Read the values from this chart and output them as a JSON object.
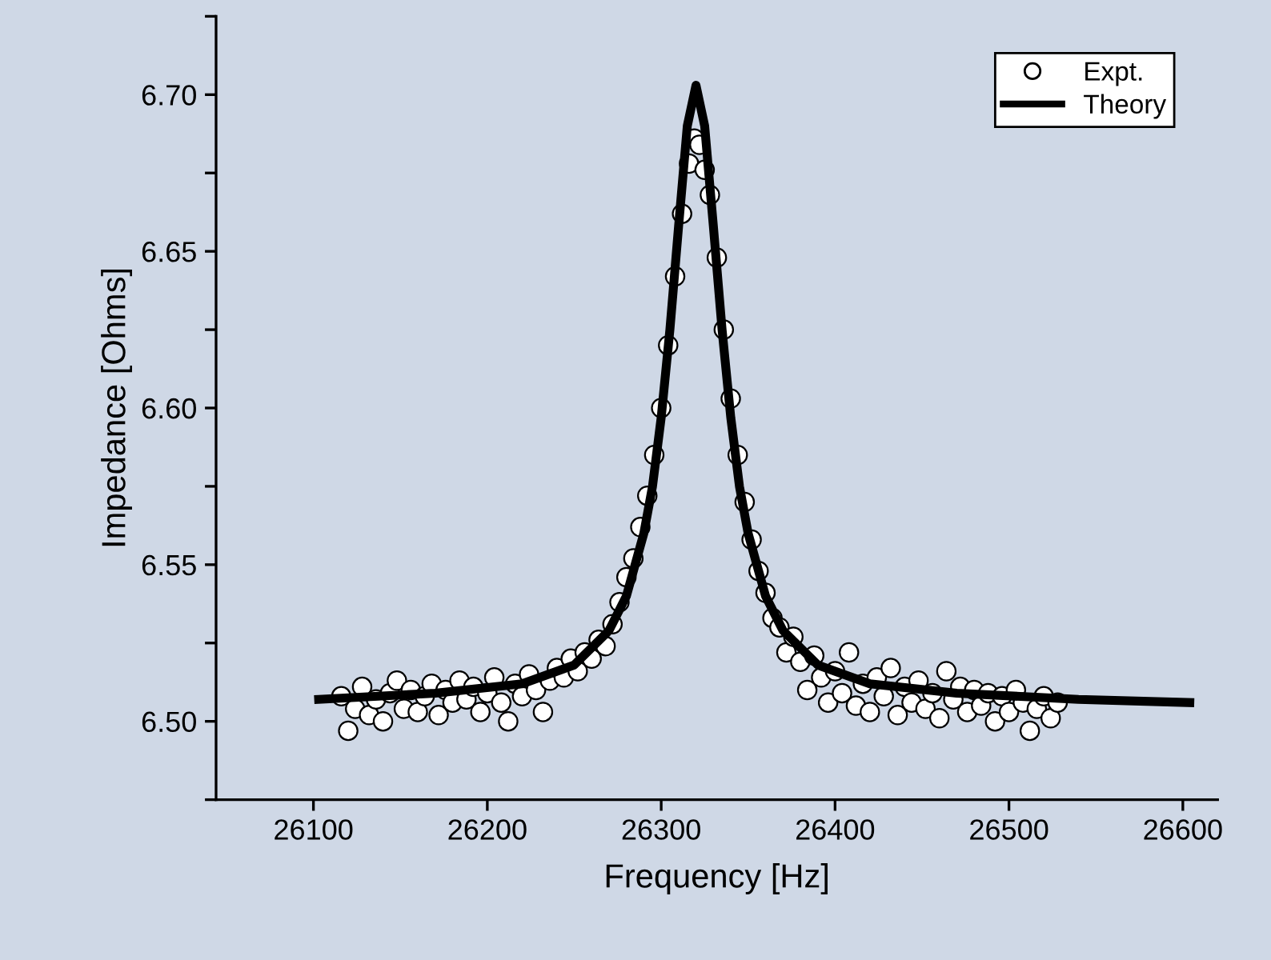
{
  "chart_data": {
    "type": "scatter",
    "xlabel": "Frequency [Hz]",
    "ylabel": "Impedance [Ohms]",
    "xlim": [
      26044,
      26620
    ],
    "ylim": [
      6.475,
      6.725
    ],
    "xticks": [
      26100,
      26200,
      26300,
      26400,
      26500,
      26600
    ],
    "yticks": [
      {
        "value": 6.475,
        "label": null
      },
      {
        "value": 6.5,
        "label": "6.50"
      },
      {
        "value": 6.525,
        "label": null
      },
      {
        "value": 6.55,
        "label": "6.55"
      },
      {
        "value": 6.575,
        "label": null
      },
      {
        "value": 6.6,
        "label": "6.60"
      },
      {
        "value": 6.625,
        "label": null
      },
      {
        "value": 6.65,
        "label": "6.65"
      },
      {
        "value": 6.675,
        "label": null
      },
      {
        "value": 6.7,
        "label": "6.70"
      },
      {
        "value": 6.725,
        "label": null
      }
    ],
    "grid": false,
    "legend": "top right",
    "series": [
      {
        "name": "Expt.",
        "marker": "circle",
        "color": "#ffffff",
        "x": [
          26116,
          26120,
          26124,
          26128,
          26132,
          26136,
          26140,
          26144,
          26148,
          26152,
          26156,
          26160,
          26164,
          26168,
          26172,
          26176,
          26180,
          26184,
          26188,
          26192,
          26196,
          26200,
          26204,
          26208,
          26212,
          26216,
          26220,
          26224,
          26228,
          26232,
          26236,
          26240,
          26244,
          26248,
          26252,
          26256,
          26260,
          26264,
          26268,
          26272,
          26276,
          26280,
          26284,
          26288,
          26292,
          26296,
          26300,
          26304,
          26308,
          26312,
          26316,
          26319,
          26322,
          26325,
          26328,
          26332,
          26336,
          26340,
          26344,
          26348,
          26352,
          26356,
          26360,
          26364,
          26368,
          26372,
          26376,
          26380,
          26384,
          26388,
          26392,
          26396,
          26400,
          26404,
          26408,
          26412,
          26416,
          26420,
          26424,
          26428,
          26432,
          26436,
          26440,
          26444,
          26448,
          26452,
          26456,
          26460,
          26464,
          26468,
          26472,
          26476,
          26480,
          26484,
          26488,
          26492,
          26496,
          26500,
          26504,
          26508,
          26512,
          26516,
          26520,
          26524,
          26528
        ],
        "values": [
          6.508,
          6.497,
          6.504,
          6.511,
          6.502,
          6.507,
          6.5,
          6.509,
          6.513,
          6.504,
          6.51,
          6.503,
          6.508,
          6.512,
          6.502,
          6.51,
          6.506,
          6.513,
          6.507,
          6.511,
          6.503,
          6.509,
          6.514,
          6.506,
          6.5,
          6.512,
          6.508,
          6.515,
          6.51,
          6.503,
          6.513,
          6.517,
          6.514,
          6.52,
          6.516,
          6.522,
          6.52,
          6.526,
          6.524,
          6.531,
          6.538,
          6.546,
          6.552,
          6.562,
          6.572,
          6.585,
          6.6,
          6.62,
          6.642,
          6.662,
          6.678,
          6.686,
          6.684,
          6.676,
          6.668,
          6.648,
          6.625,
          6.603,
          6.585,
          6.57,
          6.558,
          6.548,
          6.541,
          6.533,
          6.53,
          6.522,
          6.527,
          6.519,
          6.51,
          6.521,
          6.514,
          6.506,
          6.516,
          6.509,
          6.522,
          6.505,
          6.512,
          6.503,
          6.514,
          6.508,
          6.517,
          6.502,
          6.511,
          6.506,
          6.513,
          6.504,
          6.509,
          6.501,
          6.516,
          6.507,
          6.511,
          6.503,
          6.51,
          6.505,
          6.509,
          6.5,
          6.508,
          6.503,
          6.51,
          6.506,
          6.497,
          6.504,
          6.508,
          6.501,
          6.506
        ]
      },
      {
        "name": "Theory",
        "type": "line",
        "marker": "none",
        "line_style": "solid",
        "color": "#000000",
        "x": [
          26103,
          26170,
          26220,
          26250,
          26270,
          26280,
          26290,
          26295,
          26300,
          26305,
          26310,
          26315,
          26320,
          26325,
          26330,
          26335,
          26340,
          26345,
          26350,
          26360,
          26370,
          26390,
          26420,
          26470,
          26540,
          26604
        ],
        "values": [
          6.507,
          6.509,
          6.512,
          6.518,
          6.529,
          6.54,
          6.56,
          6.575,
          6.597,
          6.625,
          6.658,
          6.69,
          6.703,
          6.69,
          6.658,
          6.625,
          6.597,
          6.575,
          6.56,
          6.54,
          6.529,
          6.518,
          6.512,
          6.509,
          6.507,
          6.506
        ]
      }
    ]
  }
}
